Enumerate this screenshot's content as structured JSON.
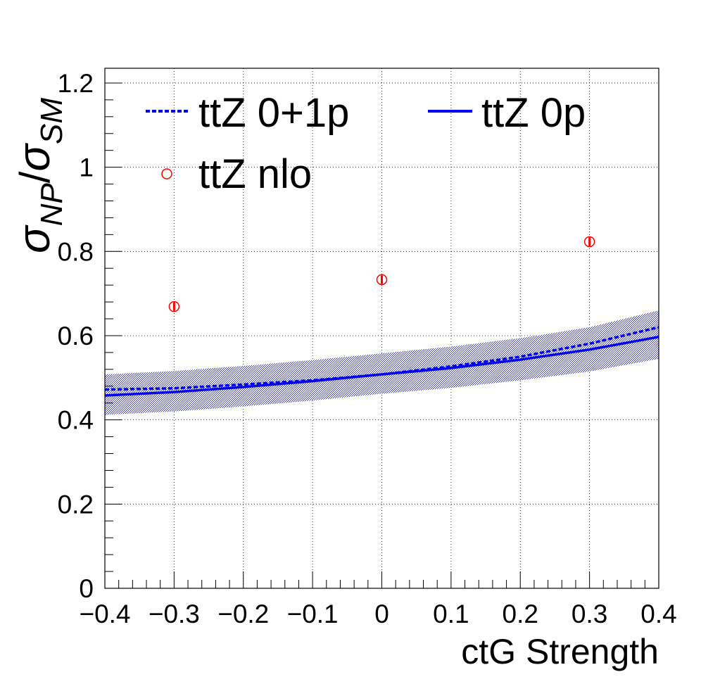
{
  "chart_data": {
    "type": "line",
    "xlabel": "ctG Strength",
    "ylabel": "σ_NP/σ_SM",
    "ylabel_parts": {
      "sym1": "σ",
      "sub1": "NP",
      "slash": "/",
      "sym2": "σ",
      "sub2": "SM"
    },
    "xlim": [
      -0.4,
      0.4
    ],
    "ylim": [
      0,
      1.235
    ],
    "x_ticks": [
      -0.4,
      -0.3,
      -0.2,
      -0.1,
      0,
      0.1,
      0.2,
      0.3,
      0.4
    ],
    "x_tick_labels": [
      "−0.4",
      "−0.3",
      "−0.2",
      "−0.1",
      "0",
      "0.1",
      "0.2",
      "0.3",
      "0.4"
    ],
    "y_ticks": [
      0,
      0.2,
      0.4,
      0.6,
      0.8,
      1,
      1.2
    ],
    "y_tick_labels": [
      "0",
      "0.2",
      "0.4",
      "0.6",
      "0.8",
      "1",
      "1.2"
    ],
    "grid": true,
    "legend_placement": "top",
    "series": [
      {
        "name": "ttZ 0+1p",
        "style": "dashed",
        "color": "#0000ee",
        "x": [
          -0.4,
          -0.3,
          -0.2,
          -0.1,
          0,
          0.1,
          0.2,
          0.3,
          0.4
        ],
        "y": [
          0.472,
          0.475,
          0.484,
          0.494,
          0.508,
          0.527,
          0.55,
          0.581,
          0.62
        ]
      },
      {
        "name": "ttZ 0p",
        "style": "solid",
        "color": "#0000ee",
        "x": [
          -0.4,
          -0.3,
          -0.2,
          -0.1,
          0,
          0.1,
          0.2,
          0.3,
          0.4
        ],
        "y": [
          0.458,
          0.466,
          0.478,
          0.492,
          0.508,
          0.523,
          0.543,
          0.567,
          0.597
        ],
        "band_lower": [
          0.412,
          0.42,
          0.432,
          0.446,
          0.462,
          0.476,
          0.494,
          0.515,
          0.545
        ],
        "band_upper": [
          0.508,
          0.516,
          0.528,
          0.542,
          0.558,
          0.574,
          0.594,
          0.62,
          0.66
        ]
      },
      {
        "name": "ttZ nlo",
        "style": "markers",
        "color": "#ff0000",
        "x": [
          -0.3,
          0,
          0.3
        ],
        "y": [
          0.669,
          0.733,
          0.823
        ],
        "err": [
          0.01,
          0.01,
          0.01
        ]
      }
    ]
  }
}
